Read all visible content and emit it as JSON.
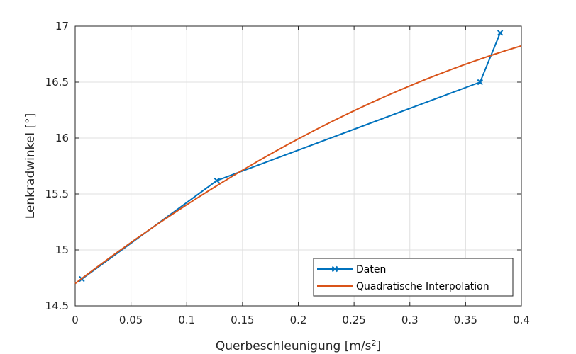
{
  "chart_data": {
    "type": "line",
    "xlabel": "Querbeschleunigung [m/s",
    "xlabel_superscript": "2",
    "xlabel_suffix": "]",
    "ylabel": "Lenkradwinkel [°]",
    "xlim": [
      0,
      0.4
    ],
    "ylim": [
      14.5,
      17
    ],
    "x_ticks": [
      0,
      0.05,
      0.1,
      0.15,
      0.2,
      0.25,
      0.3,
      0.35,
      0.4
    ],
    "x_tick_labels": [
      "0",
      "0.05",
      "0.1",
      "0.15",
      "0.2",
      "0.25",
      "0.3",
      "0.35",
      "0.4"
    ],
    "y_ticks": [
      14.5,
      15,
      15.5,
      16,
      16.5,
      17
    ],
    "y_tick_labels": [
      "14.5",
      "15",
      "15.5",
      "16",
      "16.5",
      "17"
    ],
    "grid": true,
    "legend_position": "bottom-right",
    "series": [
      {
        "name": "Daten",
        "marker": "x",
        "color": "#0072BD",
        "x": [
          0.006,
          0.127,
          0.363,
          0.381
        ],
        "y": [
          14.74,
          15.62,
          16.5,
          16.94
        ]
      },
      {
        "name": "Quadratische Interpolation",
        "marker": "none",
        "color": "#D95319",
        "curve": "quadratic",
        "x": [
          0.0,
          0.05,
          0.1,
          0.15,
          0.2,
          0.25,
          0.3,
          0.35,
          0.4
        ],
        "y": [
          14.71,
          15.06,
          15.39,
          15.71,
          16.0,
          16.25,
          16.47,
          16.66,
          16.82
        ]
      }
    ]
  }
}
